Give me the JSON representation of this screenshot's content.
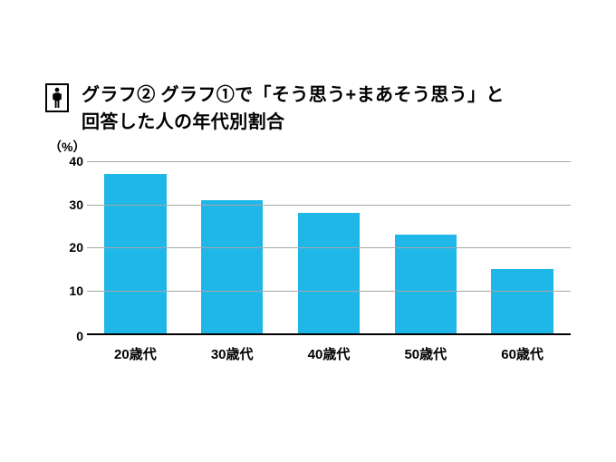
{
  "title": {
    "line1": "グラフ②  グラフ①で「そう思う+まあそう思う」と",
    "line2": "回答した人の年代別割合"
  },
  "icon": {
    "name": "person-icon",
    "border_color": "#000000",
    "fill_color": "#000000"
  },
  "chart": {
    "type": "bar",
    "unit_label": "（%）",
    "categories": [
      "20歳代",
      "30歳代",
      "40歳代",
      "50歳代",
      "60歳代"
    ],
    "values": [
      37,
      31,
      28,
      23,
      15
    ],
    "bar_color": "#1fb6e8",
    "background_color": "#ffffff",
    "axis_color": "#000000",
    "grid_color": "#a7a7a7",
    "ylim": [
      0,
      40
    ],
    "yticks": [
      0,
      10,
      20,
      30,
      40
    ],
    "bar_width_ratio": 0.64,
    "label_fontsize": 14,
    "category_fontsize": 15,
    "title_fontsize": 20,
    "title_fontweight": 700
  }
}
